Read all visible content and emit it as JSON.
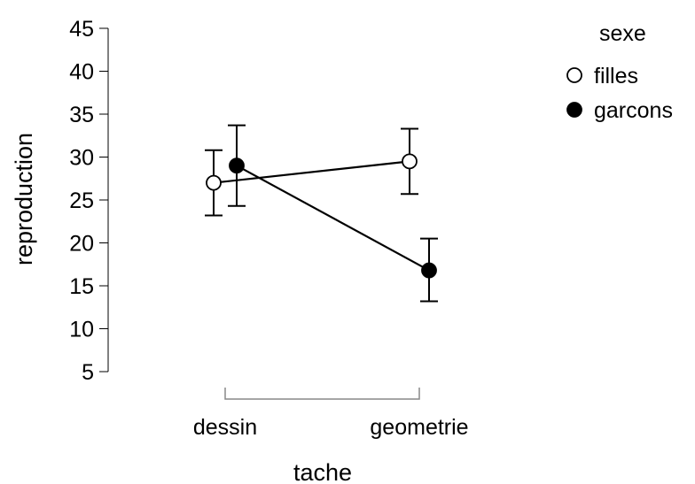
{
  "chart_data": {
    "type": "line",
    "categories": [
      "dessin",
      "geometrie"
    ],
    "xlabel": "tache",
    "ylabel": "reproduction",
    "yticks": [
      5,
      10,
      15,
      20,
      25,
      30,
      35,
      40,
      45
    ],
    "ylim": [
      5,
      45
    ],
    "grid": false,
    "legend": {
      "title": "sexe",
      "position": "top-right"
    },
    "series": [
      {
        "name": "filles",
        "marker": "open-circle",
        "color": "#ffffff",
        "values": [
          27.0,
          29.5
        ],
        "lower": [
          23.2,
          25.7
        ],
        "upper": [
          30.8,
          33.3
        ]
      },
      {
        "name": "garcons",
        "marker": "filled-circle",
        "color": "#000000",
        "values": [
          29.0,
          16.8
        ],
        "lower": [
          24.3,
          13.2
        ],
        "upper": [
          33.7,
          20.5
        ]
      }
    ]
  }
}
